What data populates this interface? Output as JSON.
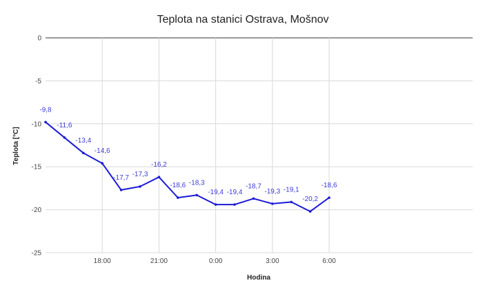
{
  "chart_data": {
    "type": "line",
    "title": "Teplota na stanici Ostrava, Mošnov",
    "xlabel": "Hodina",
    "ylabel": "Teplota [°C]",
    "ylim": [
      -25,
      0
    ],
    "yticks": [
      0,
      -5,
      -10,
      -15,
      -20,
      -25
    ],
    "x_tick_labels": [
      "18:00",
      "21:00",
      "0:00",
      "3:00",
      "6:00"
    ],
    "grid": true,
    "legend": "none",
    "series": [
      {
        "values": [
          -9.8,
          -11.6,
          -13.4,
          -14.6,
          -17.7,
          -17.3,
          -16.2,
          -18.6,
          -18.3,
          -19.4,
          -19.4,
          -18.7,
          -19.3,
          -19.1,
          -20.2,
          -18.6
        ],
        "value_labels": [
          "-9,8",
          "-11,6",
          "-13,4",
          "-14,6",
          "-17,7",
          "-17,3",
          "-16,2",
          "-18,6",
          "-18,3",
          "-19,4",
          "-19,4",
          "-18,7",
          "-19,3",
          "-19,1",
          "-20,2",
          "-18,6"
        ]
      }
    ],
    "colors": {
      "line": "#1a1ad6",
      "label": "#3b3bd6",
      "grid": "#d9d9d9",
      "axis": "#333333"
    }
  }
}
